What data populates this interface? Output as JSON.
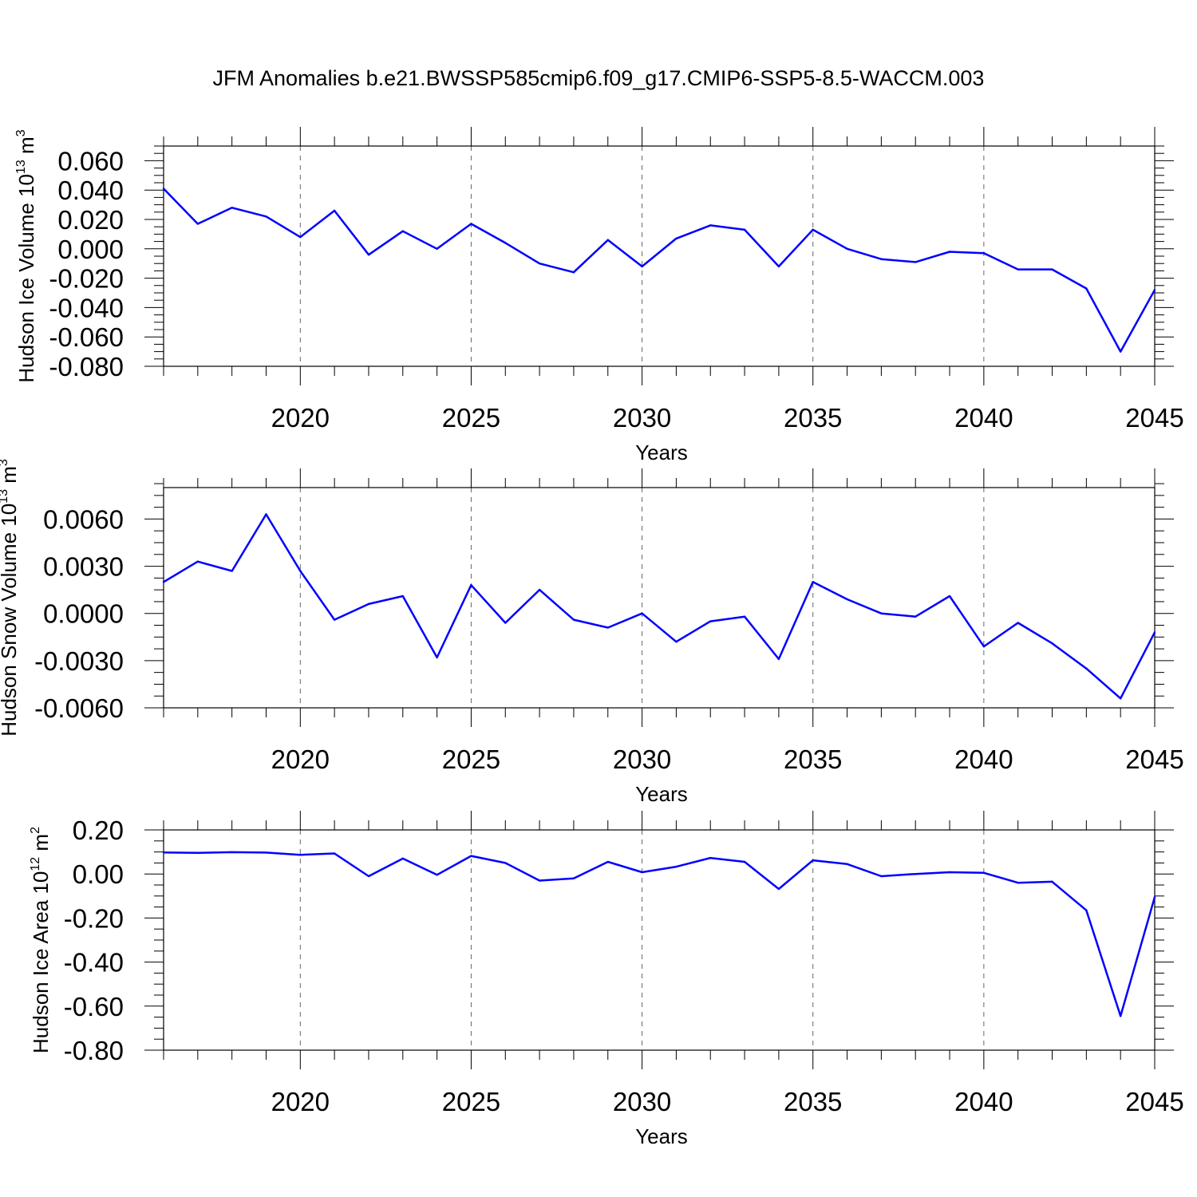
{
  "title": "JFM Anomalies b.e21.BWSSP585cmip6.f09_g17.CMIP6-SSP5-8.5-WACCM.003",
  "colors": {
    "line": "#0000ff",
    "axis": "#000000",
    "grid": "#666666"
  },
  "chart_data": [
    {
      "type": "line",
      "ylabel": "Hudson Ice Volume",
      "yunit_base": "10",
      "yunit_exp": "13",
      "yunit_suffix": "m",
      "yunit_suffix_exp": "3",
      "xlabel": "Years",
      "xlim": [
        2016,
        2045
      ],
      "ylim": [
        -0.08,
        0.07
      ],
      "x_ticks": [
        "2020",
        "2025",
        "2030",
        "2035",
        "2040",
        "2045"
      ],
      "y_ticks": [
        "0.060",
        "0.040",
        "0.020",
        "0.000",
        "-0.020",
        "-0.040",
        "-0.060",
        "-0.080"
      ],
      "grid": "vertical dashed at major x ticks",
      "x": [
        2016,
        2017,
        2018,
        2019,
        2020,
        2021,
        2022,
        2023,
        2024,
        2025,
        2026,
        2027,
        2028,
        2029,
        2030,
        2031,
        2032,
        2033,
        2034,
        2035,
        2036,
        2037,
        2038,
        2039,
        2040,
        2041,
        2042,
        2043,
        2044,
        2045
      ],
      "values": [
        0.041,
        0.017,
        0.028,
        0.022,
        0.008,
        0.026,
        -0.004,
        0.012,
        0.0,
        0.017,
        0.004,
        -0.01,
        -0.016,
        0.006,
        -0.012,
        0.007,
        0.016,
        0.013,
        -0.012,
        0.013,
        0.0,
        -0.007,
        -0.009,
        -0.002,
        -0.003,
        -0.014,
        -0.014,
        -0.027,
        -0.07,
        -0.028
      ]
    },
    {
      "type": "line",
      "ylabel": "Hudson Snow Volume",
      "yunit_base": "10",
      "yunit_exp": "13",
      "yunit_suffix": "m",
      "yunit_suffix_exp": "3",
      "xlabel": "Years",
      "xlim": [
        2016,
        2045
      ],
      "ylim": [
        -0.006,
        0.008
      ],
      "x_ticks": [
        "2020",
        "2025",
        "2030",
        "2035",
        "2040",
        "2045"
      ],
      "y_ticks": [
        "0.0060",
        "0.0030",
        "0.0000",
        "-0.0030",
        "-0.0060"
      ],
      "grid": "vertical dashed at major x ticks",
      "x": [
        2016,
        2017,
        2018,
        2019,
        2020,
        2021,
        2022,
        2023,
        2024,
        2025,
        2026,
        2027,
        2028,
        2029,
        2030,
        2031,
        2032,
        2033,
        2034,
        2035,
        2036,
        2037,
        2038,
        2039,
        2040,
        2041,
        2042,
        2043,
        2044,
        2045
      ],
      "values": [
        0.002,
        0.0033,
        0.0027,
        0.0063,
        0.0027,
        -0.0004,
        0.0006,
        0.0011,
        -0.0028,
        0.0018,
        -0.0006,
        0.0015,
        -0.0004,
        -0.0009,
        0.0,
        -0.0018,
        -0.0005,
        -0.0002,
        -0.0029,
        0.002,
        0.0009,
        0.0,
        -0.0002,
        0.0011,
        -0.0021,
        -0.0006,
        -0.0019,
        -0.0035,
        -0.0054,
        -0.0012
      ]
    },
    {
      "type": "line",
      "ylabel": "Hudson Ice Area",
      "yunit_base": "10",
      "yunit_exp": "12",
      "yunit_suffix": "m",
      "yunit_suffix_exp": "2",
      "xlabel": "Years",
      "xlim": [
        2016,
        2045
      ],
      "ylim": [
        -0.8,
        0.2
      ],
      "x_ticks": [
        "2020",
        "2025",
        "2030",
        "2035",
        "2040",
        "2045"
      ],
      "y_ticks": [
        "0.20",
        "0.00",
        "-0.20",
        "-0.40",
        "-0.60",
        "-0.80"
      ],
      "grid": "vertical dashed at major x ticks",
      "x": [
        2016,
        2017,
        2018,
        2019,
        2020,
        2021,
        2022,
        2023,
        2024,
        2025,
        2026,
        2027,
        2028,
        2029,
        2030,
        2031,
        2032,
        2033,
        2034,
        2035,
        2036,
        2037,
        2038,
        2039,
        2040,
        2041,
        2042,
        2043,
        2044,
        2045
      ],
      "values": [
        0.098,
        0.096,
        0.099,
        0.097,
        0.087,
        0.093,
        -0.01,
        0.07,
        -0.004,
        0.082,
        0.05,
        -0.03,
        -0.02,
        0.055,
        0.008,
        0.033,
        0.073,
        0.055,
        -0.068,
        0.062,
        0.045,
        -0.01,
        0.0,
        0.008,
        0.005,
        -0.04,
        -0.035,
        -0.165,
        -0.645,
        -0.105
      ]
    }
  ]
}
